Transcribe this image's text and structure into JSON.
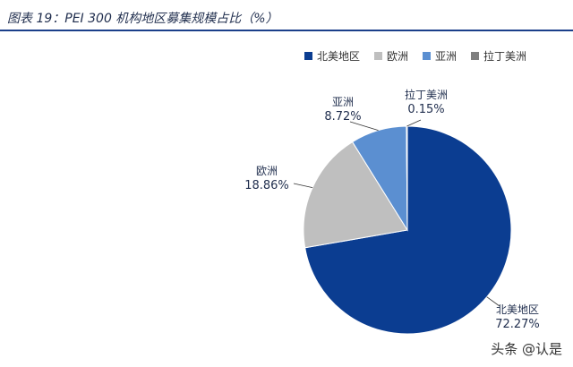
{
  "header": {
    "title": "图表 19：PEI 300 机构地区募集规模占比（%）"
  },
  "watermark": "头条 @认是",
  "chart_data": {
    "type": "pie",
    "title": "图表 19：PEI 300 机构地区募集规模占比（%）",
    "legend_position": "top-right",
    "slices": [
      {
        "label": "北美地区",
        "value": 72.27,
        "display": "72.27%",
        "color": "#0b3d91"
      },
      {
        "label": "欧洲",
        "value": 18.86,
        "display": "18.86%",
        "color": "#bfbfbf"
      },
      {
        "label": "亚洲",
        "value": 8.72,
        "display": "8.72%",
        "color": "#5b8fd1"
      },
      {
        "label": "拉丁美洲",
        "value": 0.15,
        "display": "0.15%",
        "color": "#7f7f7f"
      }
    ]
  }
}
